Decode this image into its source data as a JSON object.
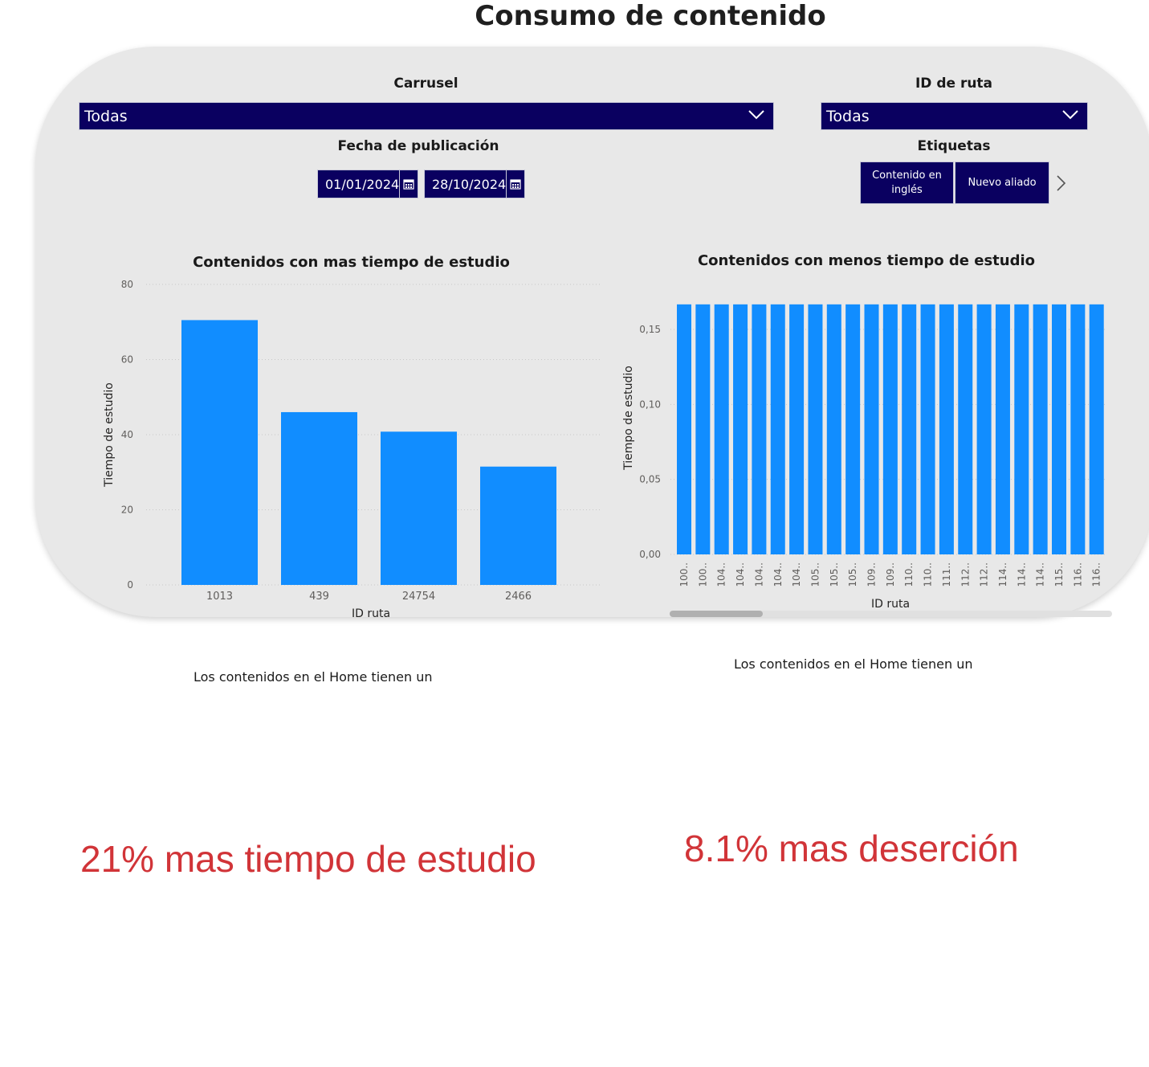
{
  "page": {
    "title": "Consumo de contenido"
  },
  "slicers": {
    "carrusel": {
      "title": "Carrusel",
      "value": "Todas"
    },
    "id_ruta": {
      "title": "ID de ruta",
      "value": "Todas"
    },
    "fecha": {
      "title": "Fecha de publicación",
      "start": "01/01/2024",
      "end": "28/10/2024"
    },
    "etiquetas": {
      "title": "Etiquetas",
      "items": [
        "Contenido en inglés",
        "Nuevo aliado"
      ]
    }
  },
  "chart_data": [
    {
      "type": "bar",
      "title": "Contenidos con mas tiempo de estudio",
      "xlabel": "ID ruta",
      "ylabel": "Tiempo de estudio",
      "categories": [
        "1013",
        "439",
        "24754",
        "2466"
      ],
      "values": [
        70.5,
        46,
        40.8,
        31.5
      ],
      "ylim": [
        0,
        80
      ],
      "yticks": [
        "0",
        "20",
        "40",
        "60",
        "80"
      ],
      "grid": true,
      "color": "#118dff"
    },
    {
      "type": "bar",
      "title": "Contenidos con menos tiempo de estudio",
      "xlabel": "ID ruta",
      "ylabel": "Tiempo de estudio",
      "categories": [
        "100..",
        "100..",
        "104..",
        "104..",
        "104..",
        "104..",
        "104..",
        "105..",
        "105..",
        "105..",
        "109..",
        "109..",
        "110..",
        "110..",
        "111..",
        "112..",
        "112..",
        "114..",
        "114..",
        "114..",
        "115..",
        "116..",
        "116.."
      ],
      "values": [
        0.1667,
        0.1667,
        0.1667,
        0.1667,
        0.1667,
        0.1667,
        0.1667,
        0.1667,
        0.1667,
        0.1667,
        0.1667,
        0.1667,
        0.1667,
        0.1667,
        0.1667,
        0.1667,
        0.1667,
        0.1667,
        0.1667,
        0.1667,
        0.1667,
        0.1667,
        0.1667
      ],
      "ylim": [
        0,
        0.18
      ],
      "yticks": [
        "0,00",
        "0,05",
        "0,10",
        "0,15"
      ],
      "grid": true,
      "color": "#118dff"
    }
  ],
  "notes": {
    "left_text": "Los contenidos en el Home tienen un",
    "right_text": "Los contenidos en el Home tienen un",
    "left_big": "21% mas tiempo de estudio",
    "right_big": "8.1% mas deserción"
  }
}
